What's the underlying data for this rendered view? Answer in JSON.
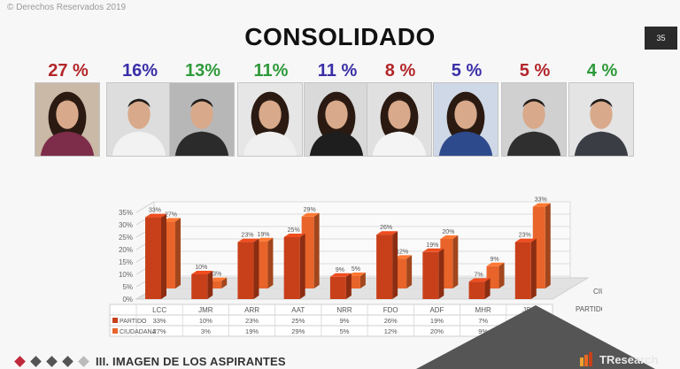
{
  "header": {
    "copyright": "© Derechos Reservados 2019",
    "title": "CONSOLIDADO",
    "page_number": "35"
  },
  "candidates": [
    {
      "pct": "27 %",
      "color": "#b3262a",
      "photo": "woman-portrait"
    },
    {
      "pct": "16%",
      "color": "#3a2fa8",
      "photo": "man-portrait"
    },
    {
      "pct": "13%",
      "color": "#2e9a3a",
      "photo": "man-portrait"
    },
    {
      "pct": "11%",
      "color": "#2e9a3a",
      "photo": "woman-portrait"
    },
    {
      "pct": "11 %",
      "color": "#3a2fa8",
      "photo": "woman-portrait"
    },
    {
      "pct": "8 %",
      "color": "#b3262a",
      "photo": "woman-portrait"
    },
    {
      "pct": "5 %",
      "color": "#3a2fa8",
      "photo": "woman-portrait"
    },
    {
      "pct": "5 %",
      "color": "#b3262a",
      "photo": "man-portrait"
    },
    {
      "pct": "4 %",
      "color": "#2e9a3a",
      "photo": "man-portrait"
    }
  ],
  "chart_data": {
    "type": "bar",
    "categories": [
      "LCC",
      "JMR",
      "ARR",
      "AAT",
      "NRR",
      "FDO",
      "ADF",
      "MHR",
      "JSG"
    ],
    "series": [
      {
        "name": "PARTIDO",
        "values": [
          33,
          10,
          23,
          25,
          9,
          26,
          19,
          7,
          23
        ],
        "labels": [
          "33%",
          "10%",
          "23%",
          "25%",
          "9%",
          "26%",
          "19%",
          "7%",
          "23%"
        ],
        "color": "#c8401a"
      },
      {
        "name": "CIUDADANA",
        "values": [
          27,
          3,
          19,
          29,
          5,
          12,
          20,
          9,
          33
        ],
        "labels": [
          "27%",
          "3%",
          "19%",
          "29%",
          "5%",
          "12%",
          "20%",
          "9%",
          "33%"
        ],
        "color": "#e8642a"
      }
    ],
    "y_ticks": [
      "0%",
      "5%",
      "10%",
      "15%",
      "20%",
      "25%",
      "30%",
      "35%"
    ],
    "ylim": [
      0,
      35
    ],
    "grid": true,
    "legend": "right",
    "depth_labels": [
      "CIUDADANA",
      "PARTIDO"
    ]
  },
  "footer": {
    "section": "III. IMAGEN DE LOS ASPIRANTES",
    "diamond_colors": [
      "#c0283c",
      "#555555",
      "#555555",
      "#555555",
      "#bbbbbb"
    ],
    "logo": "TResearch"
  }
}
